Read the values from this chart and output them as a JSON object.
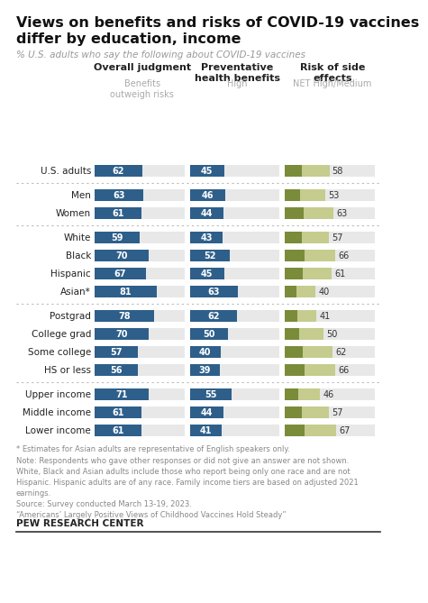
{
  "title": "Views on benefits and risks of COVID-19 vaccines\ndiffer by education, income",
  "subtitle": "% U.S. adults who say the following about COVID-19 vaccines",
  "col_headers": [
    "Overall judgment",
    "Preventative\nhealth benefits",
    "Risk of side\neffects"
  ],
  "col_subheaders": [
    "Benefits\noutweigh risks",
    "High",
    "NET High/Medium"
  ],
  "categories": [
    "U.S. adults",
    "Men",
    "Women",
    "White",
    "Black",
    "Hispanic",
    "Asian*",
    "Postgrad",
    "College grad",
    "Some college",
    "HS or less",
    "Upper income",
    "Middle income",
    "Lower income"
  ],
  "group_starts": [
    0,
    1,
    3,
    7,
    11
  ],
  "col1_values": [
    62,
    63,
    61,
    59,
    70,
    67,
    81,
    78,
    70,
    57,
    56,
    71,
    61,
    61
  ],
  "col2_values": [
    45,
    46,
    44,
    43,
    52,
    45,
    63,
    62,
    50,
    40,
    39,
    55,
    44,
    41
  ],
  "col3_values": [
    58,
    53,
    63,
    57,
    66,
    61,
    40,
    41,
    50,
    62,
    66,
    46,
    57,
    67
  ],
  "blue_dark": "#2e5f8a",
  "olive_dark": "#7a8c3a",
  "olive_light": "#c5cc8e",
  "bg_bar": "#e8e8e8",
  "bg_main": "#ffffff",
  "note_text": "* Estimates for Asian adults are representative of English speakers only.\nNote: Respondents who gave other responses or did not give an answer are not shown.\nWhite, Black and Asian adults include those who report being only one race and are not\nHispanic. Hispanic adults are of any race. Family income tiers are based on adjusted 2021\nearnings.\nSource: Survey conducted March 13-19, 2023.\n“Americans’ Largely Positive Views of Childhood Vaccines Hold Steady”",
  "source_label": "PEW RESEARCH CENTER"
}
